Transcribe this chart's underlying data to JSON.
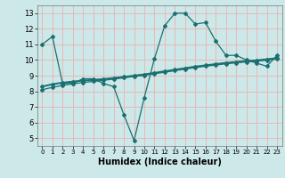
{
  "xlabel": "Humidex (Indice chaleur)",
  "xlim": [
    -0.5,
    23.5
  ],
  "ylim": [
    4.5,
    13.5
  ],
  "xticks": [
    0,
    1,
    2,
    3,
    4,
    5,
    6,
    7,
    8,
    9,
    10,
    11,
    12,
    13,
    14,
    15,
    16,
    17,
    18,
    19,
    20,
    21,
    22,
    23
  ],
  "yticks": [
    5,
    6,
    7,
    8,
    9,
    10,
    11,
    12,
    13
  ],
  "bg_color": "#cce8e8",
  "grid_color": "#e8b8b8",
  "line_color": "#1a7070",
  "line1_x": [
    0,
    1,
    2,
    3,
    4,
    5,
    6,
    7,
    8,
    9,
    10,
    11,
    12,
    13,
    14,
    15,
    16,
    17,
    18,
    19,
    20,
    21,
    22,
    23
  ],
  "line1_y": [
    11.0,
    11.5,
    8.5,
    8.5,
    8.8,
    8.8,
    8.5,
    8.3,
    6.5,
    4.85,
    7.6,
    10.1,
    12.2,
    13.0,
    13.0,
    12.3,
    12.4,
    11.2,
    10.3,
    10.3,
    10.0,
    9.8,
    9.6,
    10.3
  ],
  "line2_x": [
    0,
    1,
    2,
    3,
    4,
    5,
    6,
    7,
    8,
    9,
    10,
    11,
    12,
    13,
    14,
    15,
    16,
    17,
    18,
    19,
    20,
    21,
    22,
    23
  ],
  "line2_y": [
    8.3,
    8.45,
    8.55,
    8.62,
    8.68,
    8.73,
    8.78,
    8.85,
    8.92,
    9.0,
    9.08,
    9.18,
    9.28,
    9.38,
    9.48,
    9.58,
    9.66,
    9.74,
    9.82,
    9.88,
    9.94,
    9.98,
    10.05,
    10.12
  ],
  "line3_x": [
    0,
    1,
    2,
    3,
    4,
    5,
    6,
    7,
    8,
    9,
    10,
    11,
    12,
    13,
    14,
    15,
    16,
    17,
    18,
    19,
    20,
    21,
    22,
    23
  ],
  "line3_y": [
    8.1,
    8.25,
    8.38,
    8.48,
    8.56,
    8.63,
    8.7,
    8.78,
    8.86,
    8.95,
    9.02,
    9.12,
    9.22,
    9.32,
    9.42,
    9.52,
    9.6,
    9.68,
    9.76,
    9.82,
    9.88,
    9.93,
    9.99,
    10.07
  ],
  "lw1": 0.9,
  "lw2": 1.4,
  "lw3": 0.9,
  "ms": 2.0
}
